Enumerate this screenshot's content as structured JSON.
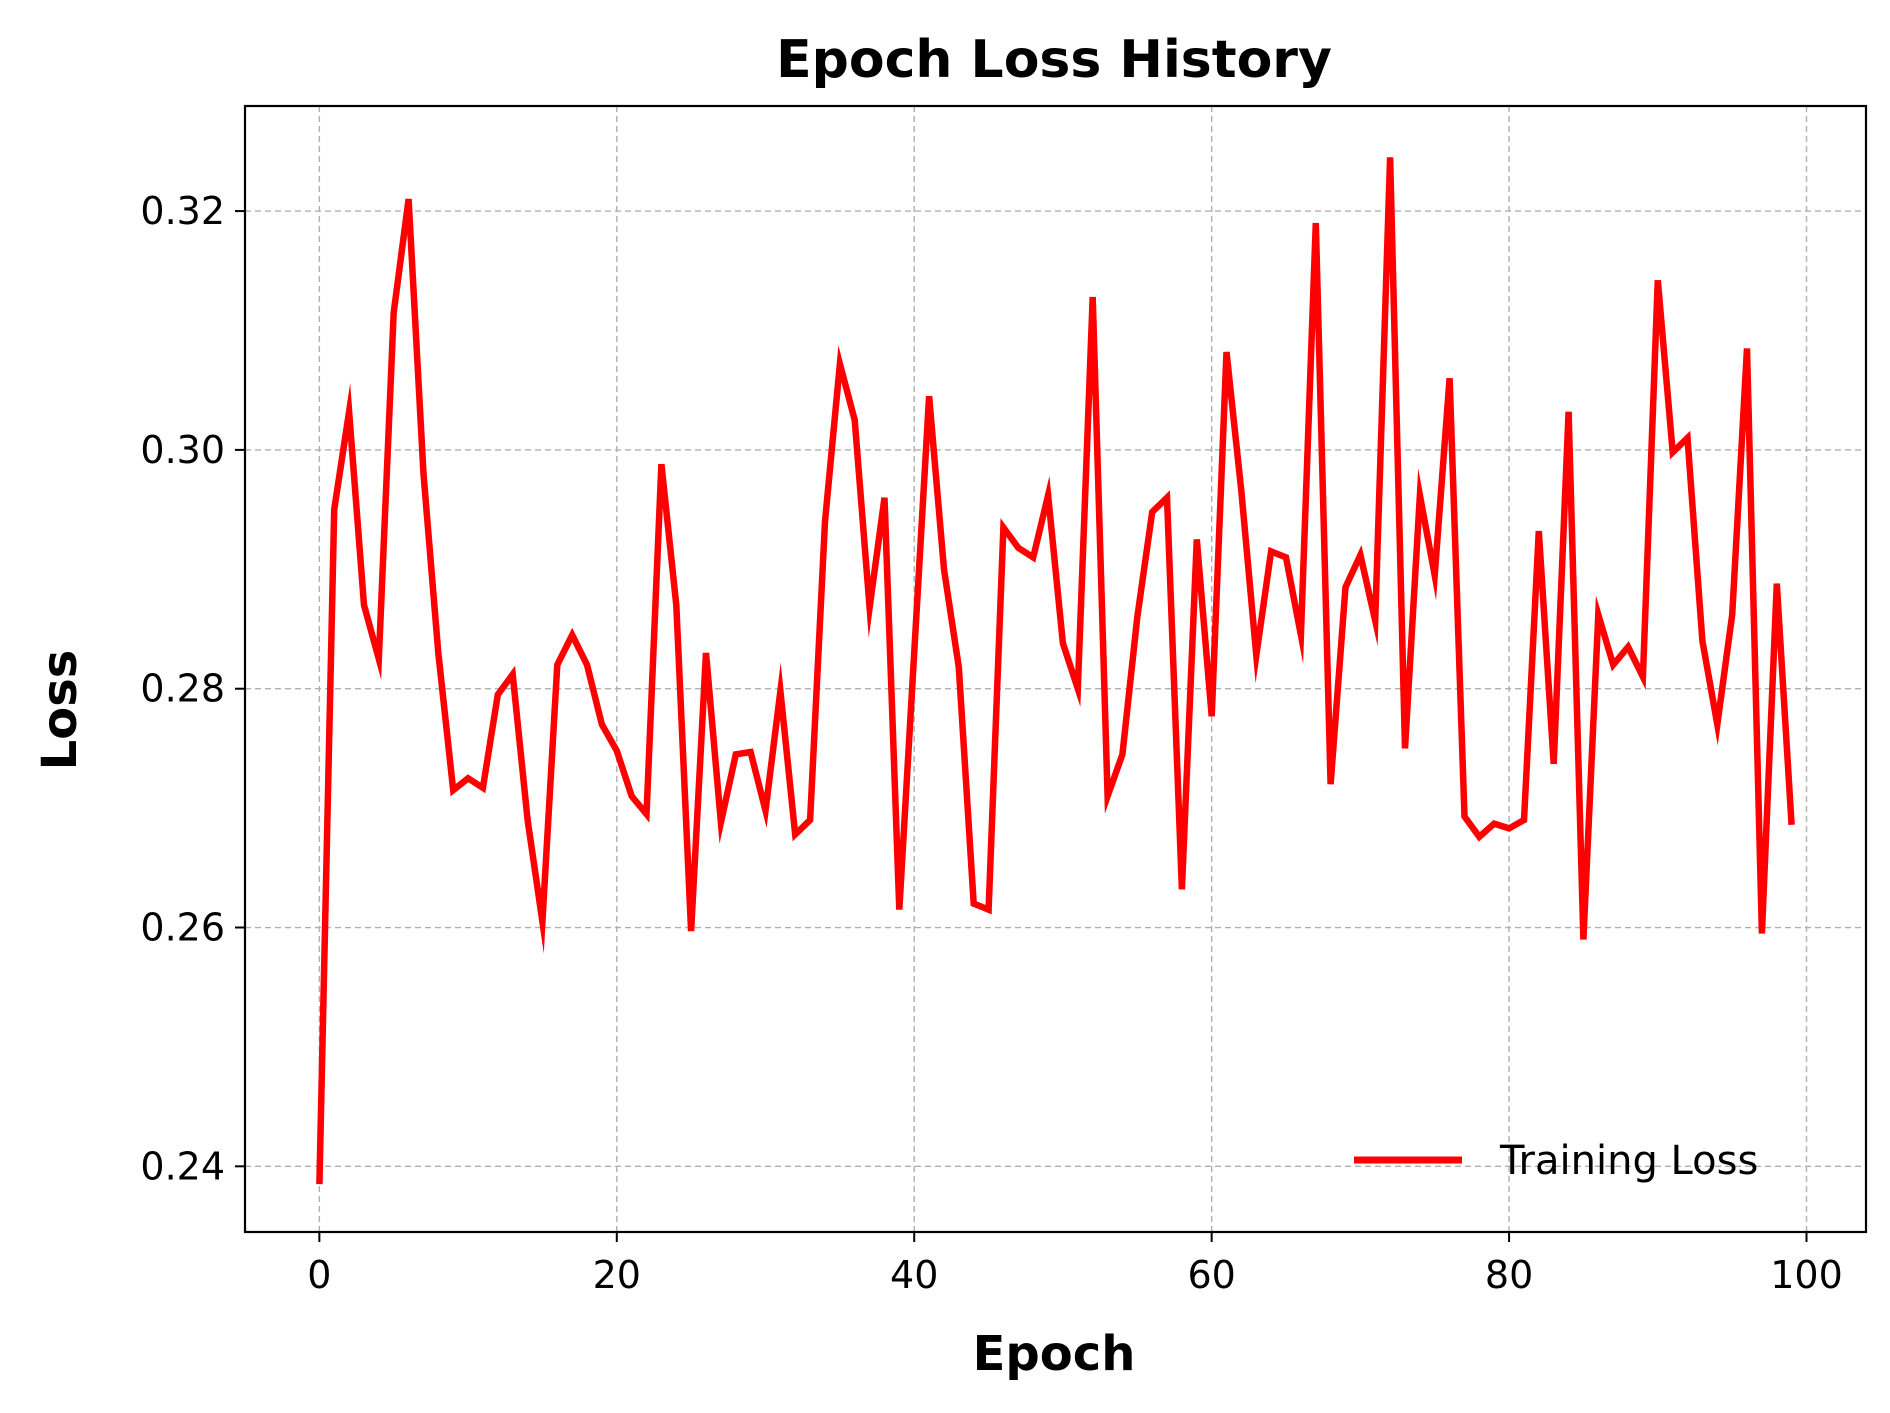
{
  "chart_data": {
    "type": "line",
    "title": "Epoch Loss History",
    "xlabel": "Epoch",
    "ylabel": "Loss",
    "xlim": [
      -5,
      104
    ],
    "ylim": [
      0.2345,
      0.3288
    ],
    "xticks": [
      0,
      20,
      40,
      60,
      80,
      100
    ],
    "xtick_labels": [
      "0",
      "20",
      "40",
      "60",
      "80",
      "100"
    ],
    "yticks": [
      0.24,
      0.26,
      0.28,
      0.3,
      0.32
    ],
    "ytick_labels": [
      "0.24",
      "0.26",
      "0.28",
      "0.30",
      "0.32"
    ],
    "grid": true,
    "legend_position": "lower-right",
    "series": [
      {
        "name": "Training Loss",
        "color": "#ff0000",
        "x": [
          0,
          1,
          2,
          3,
          4,
          5,
          6,
          7,
          8,
          9,
          10,
          11,
          12,
          13,
          14,
          15,
          16,
          17,
          18,
          19,
          20,
          21,
          22,
          23,
          24,
          25,
          26,
          27,
          28,
          29,
          30,
          31,
          32,
          33,
          34,
          35,
          36,
          37,
          38,
          39,
          40,
          41,
          42,
          43,
          44,
          45,
          46,
          47,
          48,
          49,
          50,
          51,
          52,
          53,
          54,
          55,
          56,
          57,
          58,
          59,
          60,
          61,
          62,
          63,
          64,
          65,
          66,
          67,
          68,
          69,
          70,
          71,
          72,
          73,
          74,
          75,
          76,
          77,
          78,
          79,
          80,
          81,
          82,
          83,
          84,
          85,
          86,
          87,
          88,
          89,
          90,
          91,
          92,
          93,
          94,
          95,
          96,
          97,
          98,
          99
        ],
        "y": [
          0.2385,
          0.295,
          0.3032,
          0.287,
          0.2825,
          0.3115,
          0.321,
          0.298,
          0.283,
          0.2715,
          0.2725,
          0.2717,
          0.2795,
          0.2812,
          0.269,
          0.2605,
          0.282,
          0.2845,
          0.282,
          0.277,
          0.2748,
          0.271,
          0.2695,
          0.2988,
          0.287,
          0.2597,
          0.283,
          0.2688,
          0.2745,
          0.2747,
          0.2698,
          0.2798,
          0.2678,
          0.269,
          0.294,
          0.3072,
          0.3025,
          0.2868,
          0.296,
          0.2615,
          0.283,
          0.3045,
          0.29,
          0.2818,
          0.262,
          0.2615,
          0.2935,
          0.2918,
          0.291,
          0.2962,
          0.2838,
          0.28,
          0.3128,
          0.271,
          0.2745,
          0.286,
          0.2948,
          0.296,
          0.2632,
          0.2925,
          0.2777,
          0.3082,
          0.2965,
          0.2828,
          0.2915,
          0.291,
          0.2845,
          0.319,
          0.272,
          0.2885,
          0.2912,
          0.2857,
          0.3245,
          0.275,
          0.2962,
          0.2895,
          0.306,
          0.2693,
          0.2676,
          0.2687,
          0.2683,
          0.269,
          0.2932,
          0.2737,
          0.3032,
          0.259,
          0.2862,
          0.282,
          0.2835,
          0.281,
          0.3142,
          0.2998,
          0.301,
          0.284,
          0.277,
          0.2862,
          0.3085,
          0.2595,
          0.2888,
          0.2686
        ]
      }
    ]
  }
}
